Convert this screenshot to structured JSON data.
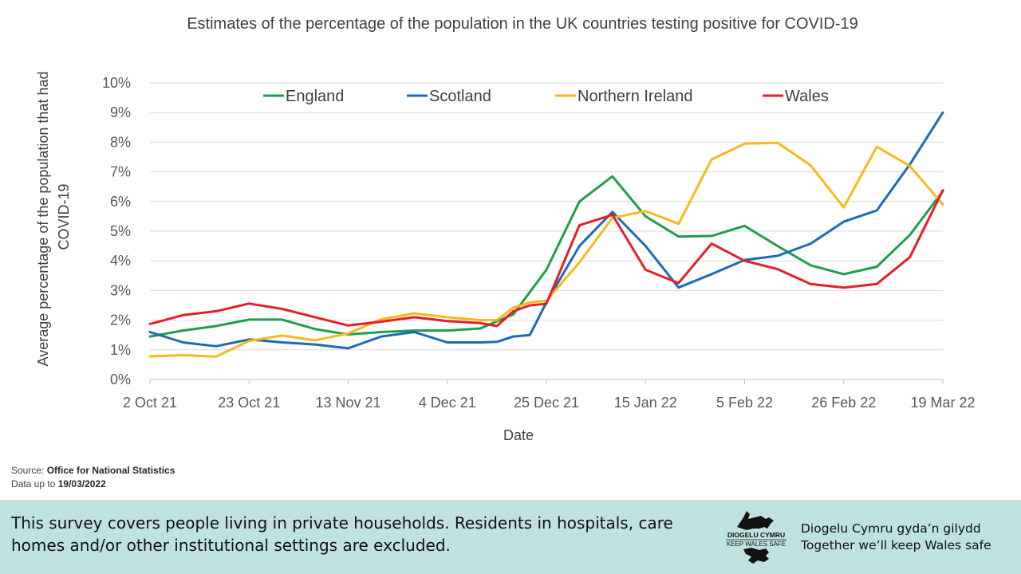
{
  "chart_data": {
    "type": "line",
    "title": "Estimates of the percentage of the population in the UK countries testing positive for COVID-19",
    "xlabel": "Date",
    "ylabel_lines": [
      "Average percentage of the population that had",
      "COVID-19"
    ],
    "ylim": [
      0,
      10
    ],
    "y_ticks": [
      "0%",
      "1%",
      "2%",
      "3%",
      "4%",
      "5%",
      "6%",
      "7%",
      "8%",
      "9%",
      "10%"
    ],
    "x_range": [
      0,
      24
    ],
    "x_tick_positions": [
      0,
      3,
      6,
      9,
      12,
      15,
      18,
      21,
      24
    ],
    "x_tick_labels": [
      "2 Oct 21",
      "23 Oct 21",
      "13 Nov 21",
      "4 Dec 21",
      "25 Dec 21",
      "15 Jan 22",
      "5 Feb 22",
      "26 Feb 22",
      "19 Mar 22"
    ],
    "grid": true,
    "legend_position": "top",
    "series": [
      {
        "name": "England",
        "color": "#1f9e4b",
        "points": [
          [
            0,
            1.45
          ],
          [
            1,
            1.65
          ],
          [
            2,
            1.8
          ],
          [
            3,
            2.02
          ],
          [
            4,
            2.02
          ],
          [
            5,
            1.7
          ],
          [
            6,
            1.52
          ],
          [
            7,
            1.6
          ],
          [
            8,
            1.65
          ],
          [
            9,
            1.65
          ],
          [
            10,
            1.72
          ],
          [
            11,
            2.2
          ],
          [
            12,
            3.7
          ],
          [
            13,
            6.0
          ],
          [
            14,
            6.85
          ],
          [
            15,
            5.5
          ],
          [
            16,
            4.82
          ],
          [
            17,
            4.84
          ],
          [
            18,
            5.18
          ],
          [
            19,
            4.5
          ],
          [
            20,
            3.85
          ],
          [
            21,
            3.55
          ],
          [
            22,
            3.8
          ],
          [
            23,
            4.87
          ],
          [
            24,
            6.35
          ]
        ]
      },
      {
        "name": "Scotland",
        "color": "#1b6bb5",
        "points": [
          [
            0,
            1.6
          ],
          [
            1,
            1.25
          ],
          [
            2,
            1.12
          ],
          [
            3,
            1.35
          ],
          [
            4,
            1.25
          ],
          [
            5,
            1.18
          ],
          [
            6,
            1.05
          ],
          [
            7,
            1.45
          ],
          [
            8,
            1.6
          ],
          [
            9,
            1.25
          ],
          [
            10,
            1.25
          ],
          [
            10.5,
            1.27
          ],
          [
            11,
            1.45
          ],
          [
            11.5,
            1.5
          ],
          [
            12,
            2.6
          ],
          [
            13,
            4.5
          ],
          [
            14,
            5.65
          ],
          [
            15,
            4.5
          ],
          [
            16,
            3.1
          ],
          [
            17,
            3.55
          ],
          [
            18,
            4.03
          ],
          [
            19,
            4.17
          ],
          [
            20,
            4.58
          ],
          [
            21,
            5.32
          ],
          [
            22,
            5.7
          ],
          [
            23,
            7.25
          ],
          [
            24,
            9.0
          ]
        ]
      },
      {
        "name": "Northern Ireland",
        "color": "#f7b91c",
        "points": [
          [
            0,
            0.78
          ],
          [
            1,
            0.82
          ],
          [
            2,
            0.77
          ],
          [
            3,
            1.3
          ],
          [
            4,
            1.48
          ],
          [
            5,
            1.32
          ],
          [
            6,
            1.55
          ],
          [
            7,
            2.03
          ],
          [
            8,
            2.23
          ],
          [
            9,
            2.1
          ],
          [
            10,
            2.0
          ],
          [
            10.5,
            2.0
          ],
          [
            11,
            2.42
          ],
          [
            11.5,
            2.6
          ],
          [
            12,
            2.65
          ],
          [
            13,
            3.95
          ],
          [
            14,
            5.45
          ],
          [
            15,
            5.68
          ],
          [
            16,
            5.25
          ],
          [
            17,
            7.42
          ],
          [
            18,
            7.95
          ],
          [
            19,
            7.98
          ],
          [
            20,
            7.22
          ],
          [
            21,
            5.8
          ],
          [
            22,
            7.85
          ],
          [
            23,
            7.2
          ],
          [
            24,
            5.9
          ]
        ]
      },
      {
        "name": "Wales",
        "color": "#e61e28",
        "points": [
          [
            0,
            1.87
          ],
          [
            1,
            2.17
          ],
          [
            2,
            2.3
          ],
          [
            3,
            2.56
          ],
          [
            4,
            2.38
          ],
          [
            5,
            2.1
          ],
          [
            6,
            1.82
          ],
          [
            7,
            1.95
          ],
          [
            8,
            2.1
          ],
          [
            9,
            1.97
          ],
          [
            10,
            1.9
          ],
          [
            10.5,
            1.8
          ],
          [
            11,
            2.3
          ],
          [
            11.5,
            2.5
          ],
          [
            12,
            2.55
          ],
          [
            13,
            5.2
          ],
          [
            14,
            5.55
          ],
          [
            15,
            3.7
          ],
          [
            16,
            3.25
          ],
          [
            17,
            4.58
          ],
          [
            18,
            4.0
          ],
          [
            19,
            3.72
          ],
          [
            20,
            3.22
          ],
          [
            21,
            3.1
          ],
          [
            22,
            3.22
          ],
          [
            23,
            4.12
          ],
          [
            24,
            6.38
          ]
        ]
      }
    ]
  },
  "source": {
    "label": "Source:",
    "value": "Office for National Statistics",
    "data_label": "Data up to",
    "data_value": "19/03/2022"
  },
  "banner": {
    "text": "This survey covers people living in private households. Residents in hospitals, care homes and/or other institutional settings are excluded.",
    "logo_line1": "DIOGELU CYMRU",
    "logo_line2": "KEEP WALES SAFE",
    "tagline_welsh": "Diogelu Cymru gyda’n gilydd",
    "tagline_english": "Together we’ll keep Wales safe"
  }
}
